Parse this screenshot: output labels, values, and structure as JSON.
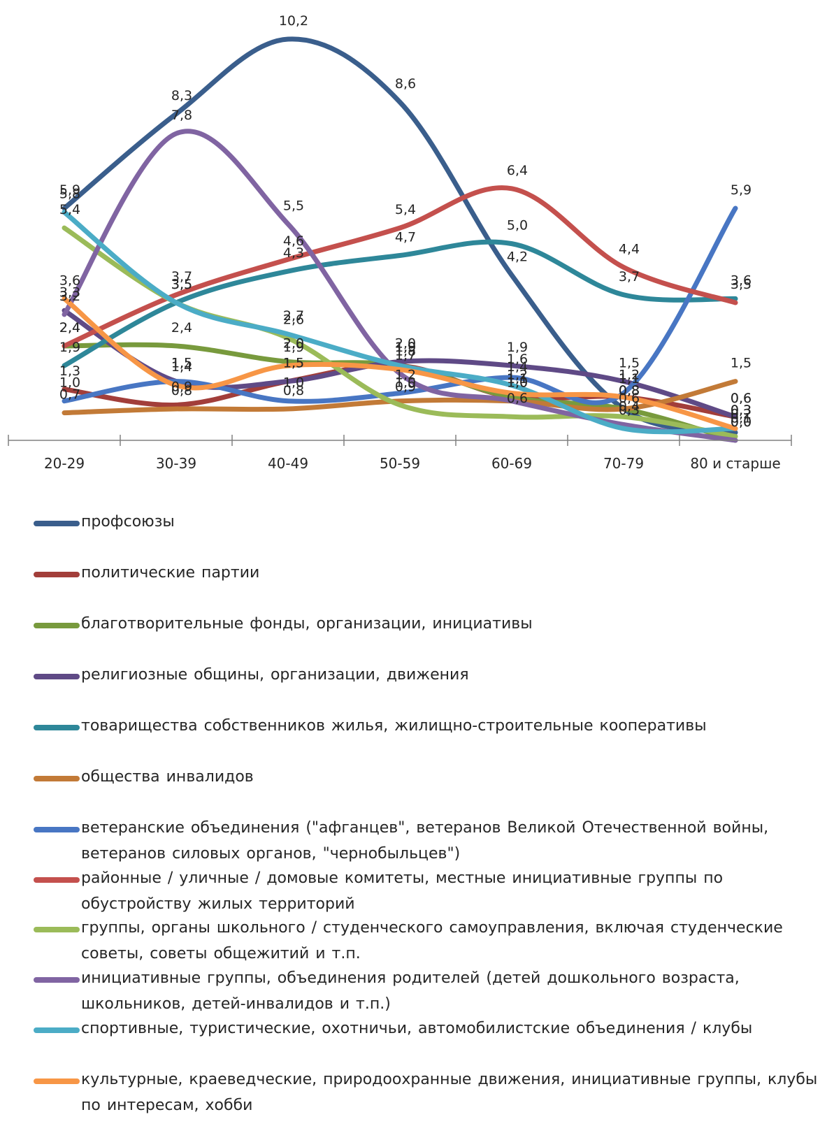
{
  "chart_data": {
    "type": "line",
    "categories": [
      "20-29",
      "30-39",
      "40-49",
      "50-59",
      "60-69",
      "70-79",
      "80 и старше"
    ],
    "ylim": [
      0,
      11
    ],
    "grid": false,
    "legend_position": "bottom",
    "series": [
      {
        "name": "профсоюзы",
        "color": "#3A5E8C",
        "values": [
          5.9,
          8.3,
          10.2,
          8.6,
          4.2,
          0.8,
          0.2
        ],
        "labels": [
          "5,9",
          "8,3",
          "10,2",
          "8,6",
          "4,2",
          "0,8",
          "0,2"
        ]
      },
      {
        "name": "политические партии",
        "color": "#A23E3A",
        "values": [
          1.3,
          0.9,
          1.5,
          1.9,
          1.1,
          1.1,
          0.6
        ],
        "labels": [
          "1,3",
          "0,9",
          "1,5",
          "1,9",
          "1,1",
          "1,1",
          "0,6"
        ]
      },
      {
        "name": "благотворительные фонды, организации, инициативы",
        "color": "#789A3D",
        "values": [
          2.4,
          2.4,
          2.0,
          1.9,
          1.1,
          0.8,
          0.0
        ],
        "labels": [
          "2,4",
          "2,4",
          "2,0",
          "1,9",
          "1,1",
          "0,8",
          "0,0"
        ]
      },
      {
        "name": "религиозные общины, организации, движения",
        "color": "#5F4A86",
        "values": [
          3.3,
          1.5,
          1.5,
          2.0,
          1.9,
          1.5,
          0.6
        ],
        "labels": [
          "3,3",
          "1,5",
          "1,5",
          "2,0",
          "1,9",
          "1,5",
          "0,6"
        ]
      },
      {
        "name": "товарищества собственников жилья, жилищно-строительные кооперативы",
        "color": "#2E8799",
        "values": [
          1.9,
          3.5,
          4.3,
          4.7,
          5.0,
          3.7,
          3.6
        ],
        "labels": [
          "1,9",
          "3,5",
          "4,3",
          "4,7",
          "5,0",
          "3,7",
          "3,6"
        ]
      },
      {
        "name": "общества инвалидов",
        "color": "#C27A37",
        "values": [
          0.7,
          0.8,
          0.8,
          1.0,
          1.0,
          0.8,
          1.5
        ],
        "labels": [
          "0,7",
          "0,8",
          "0,8",
          "1,0",
          "1,0",
          "0,8",
          "1,5"
        ]
      },
      {
        "name": "ветеранские объединения (\"афганцев\", ветеранов Великой Отечественной войны, ветеранов силовых органов, \"чернобыльцев\")",
        "color": "#4876C3",
        "values": [
          1.0,
          1.5,
          1.0,
          1.2,
          1.6,
          1.2,
          5.9
        ],
        "labels": [
          "1,0",
          "1,5",
          "1,0",
          "1,2",
          "1,6",
          "1,2",
          "5,9"
        ]
      },
      {
        "name": "районные / уличные / домовые комитеты, местные инициативные группы по обустройству жилых территорий",
        "color": "#C4504D",
        "values": [
          2.4,
          3.7,
          4.6,
          5.4,
          6.4,
          4.4,
          3.5
        ],
        "labels": [
          "2,4",
          "3,7",
          "4,6",
          "5,4",
          "6,4",
          "4,4",
          "3,5"
        ]
      },
      {
        "name": "группы, органы школьного / студенческого самоуправления, включая студенческие советы, советы общежитий и т.п.",
        "color": "#9BBB59",
        "values": [
          5.4,
          3.5,
          2.6,
          0.9,
          0.6,
          0.6,
          0.1
        ],
        "labels": [
          "5,4",
          "3,5",
          "2,6",
          "0,9",
          "0,6",
          "0,6",
          "0,1"
        ]
      },
      {
        "name": "инициативные группы, объединения родителей (детей дошкольного возраста, школьников, детей-инвалидов и т.п.)",
        "color": "#8064A2",
        "values": [
          3.2,
          7.8,
          5.5,
          1.7,
          1.0,
          0.4,
          0.0
        ],
        "labels": [
          "3,2",
          "7,8",
          "5,5",
          "1,7",
          "1,0",
          "0,4",
          "0,0"
        ]
      },
      {
        "name": "спортивные, туристические, охотничьи, автомобилистские объединения / клубы",
        "color": "#4BACC6",
        "values": [
          5.8,
          3.5,
          2.7,
          1.9,
          1.4,
          0.3,
          0.3
        ],
        "labels": [
          "5,8",
          "3,5",
          "2,7",
          "1,9",
          "1,4",
          "0,3",
          "0,3"
        ]
      },
      {
        "name": "культурные, краеведческие, природоохранные движения, инициативные группы, клубы по интересам, хобби",
        "color": "#F79646",
        "values": [
          3.6,
          1.4,
          1.9,
          1.8,
          1.2,
          1.1,
          0.3
        ],
        "labels": [
          "3,6",
          "1,4",
          "1,9",
          "1,8",
          "1,2",
          "1,1",
          "0,3"
        ]
      }
    ]
  },
  "legend": {
    "items": [
      {
        "label": "профсоюзы",
        "color": "#3A5E8C"
      },
      {
        "label": "политические партии",
        "color": "#A23E3A"
      },
      {
        "label": "благотворительные фонды, организации, инициативы",
        "color": "#789A3D"
      },
      {
        "label": "религиозные общины, организации, движения",
        "color": "#5F4A86"
      },
      {
        "label": "товарищества собственников жилья, жилищно-строительные кооперативы",
        "color": "#2E8799"
      },
      {
        "label": "общества инвалидов",
        "color": "#C27A37"
      },
      {
        "label": "ветеранские объединения (\"афганцев\", ветеранов Великой Отечественной войны, ветеранов силовых органов, \"чернобыльцев\")",
        "color": "#4876C3"
      },
      {
        "label": "районные / уличные / домовые комитеты, местные инициативные группы по обустройству жилых территорий",
        "color": "#C4504D"
      },
      {
        "label": "группы, органы школьного / студенческого самоуправления, включая студенческие советы, советы общежитий и т.п.",
        "color": "#9BBB59"
      },
      {
        "label": "инициативные группы, объединения родителей (детей дошкольного возраста, школьников, детей-инвалидов и т.п.)",
        "color": "#8064A2"
      },
      {
        "label": "спортивные, туристические, охотничьи, автомобилистские объединения / клубы",
        "color": "#4BACC6"
      },
      {
        "label": "культурные, краеведческие, природоохранные движения, инициативные группы, клубы по интересам, хобби",
        "color": "#F79646"
      }
    ]
  }
}
